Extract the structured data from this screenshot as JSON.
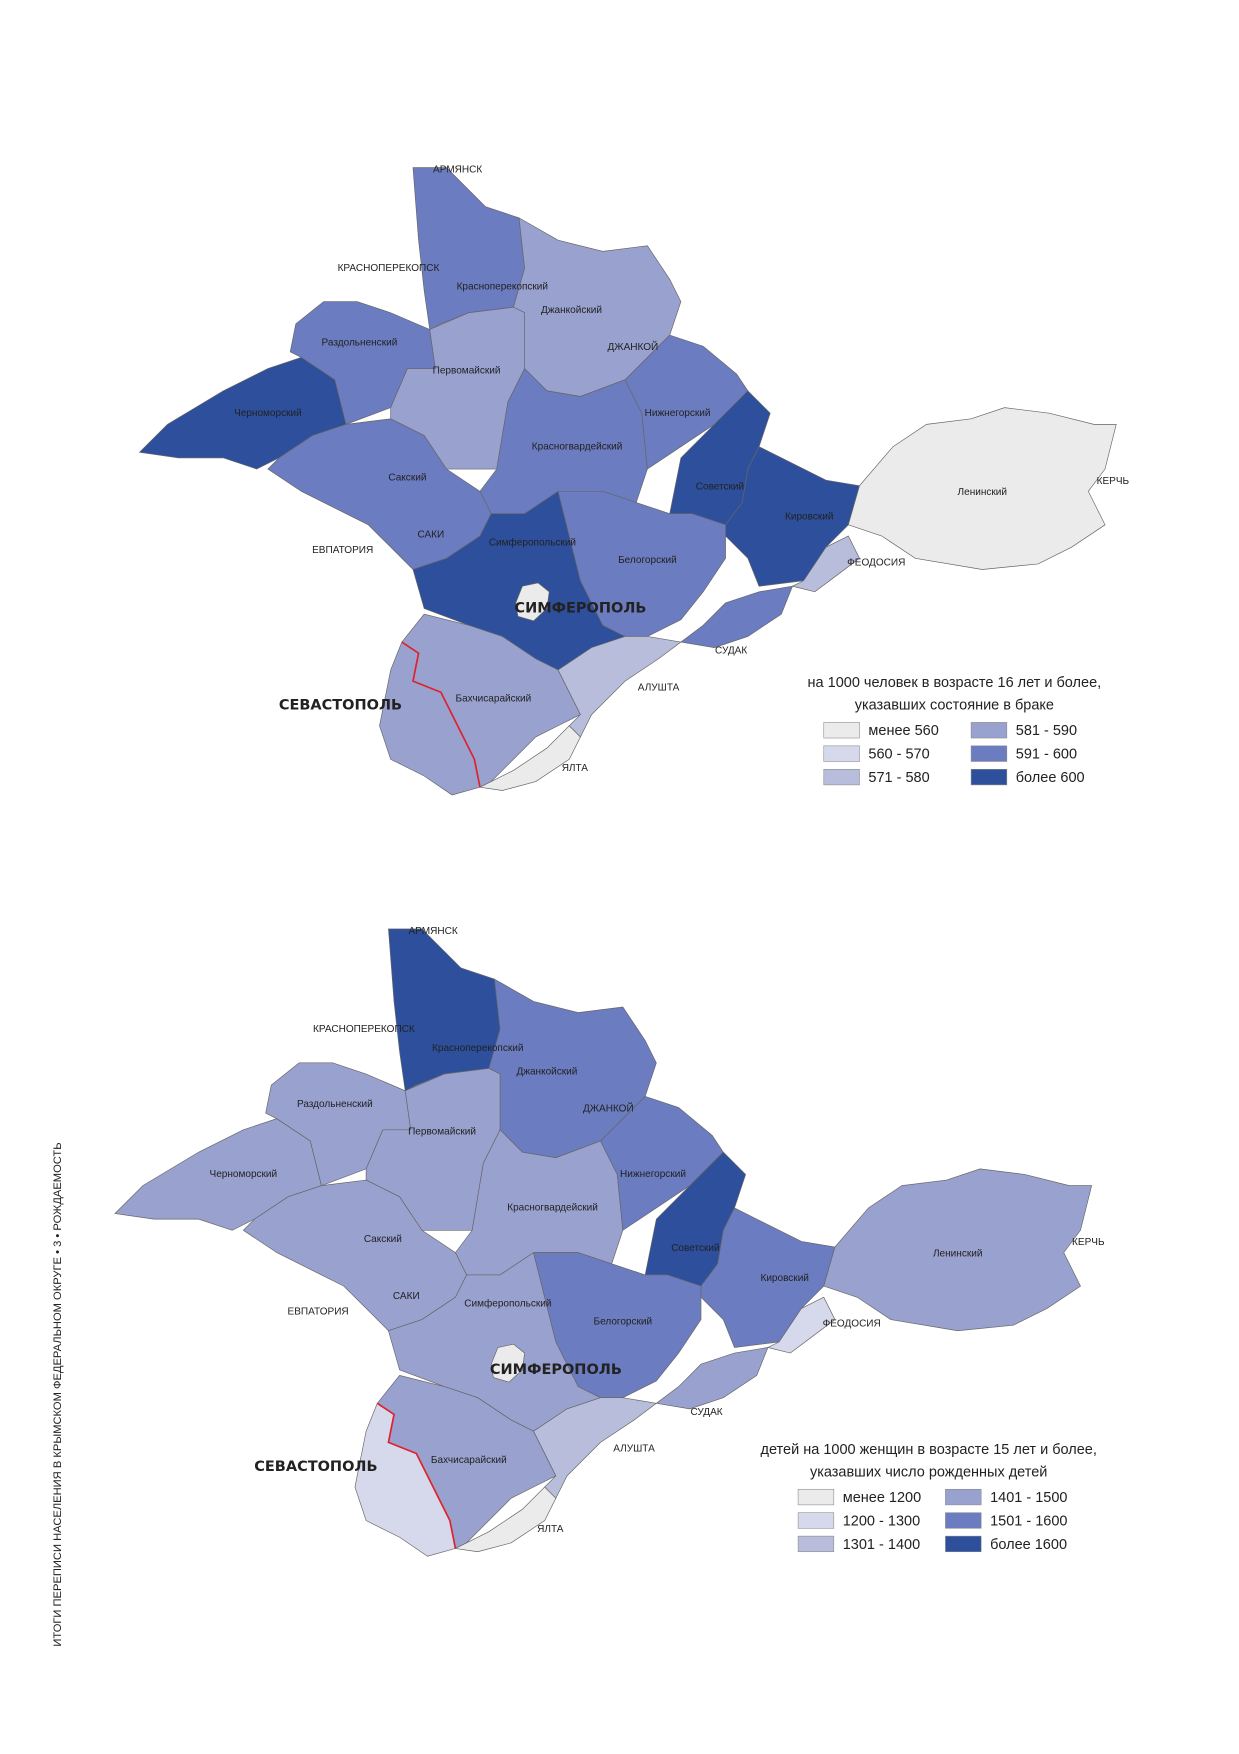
{
  "side_caption": "ИТОГИ ПЕРЕПИСИ НАСЕЛЕНИЯ В КРЫМСКОМ ФЕДЕРАЛЬНОМ ОКРУГЕ • 3 • РОЖДАЕМОСТЬ",
  "maps": [
    {
      "legend_title": [
        "на 1000 человек в возрасте 16 лет и более,",
        "указавших состояние в браке"
      ],
      "legend": [
        {
          "label": "менее 560",
          "color": "#ebebeb"
        },
        {
          "label": "560 - 570",
          "color": "#d6d9eb"
        },
        {
          "label": "571 - 580",
          "color": "#b8bddc"
        },
        {
          "label": "581 - 590",
          "color": "#99a1cf"
        },
        {
          "label": "591 - 600",
          "color": "#6b7cc0"
        },
        {
          "label": "более 600",
          "color": "#2d4f9c"
        }
      ],
      "regions": [
        {
          "name": "Черноморский",
          "class": 5
        },
        {
          "name": "Раздольненский",
          "class": 4
        },
        {
          "name": "Красноперекопский",
          "class": 4
        },
        {
          "name": "Джанкойский",
          "class": 3
        },
        {
          "name": "Первомайский",
          "class": 3
        },
        {
          "name": "Красногвардейский",
          "class": 4
        },
        {
          "name": "Нижнегорский",
          "class": 4
        },
        {
          "name": "Советский",
          "class": 5
        },
        {
          "name": "Кировский",
          "class": 5
        },
        {
          "name": "Ленинский",
          "class": 0
        },
        {
          "name": "Сакский",
          "class": 4
        },
        {
          "name": "Симферопольский",
          "class": 5
        },
        {
          "name": "Белогорский",
          "class": 4
        },
        {
          "name": "Бахчисарайский",
          "class": 3
        },
        {
          "name": "СЕВАСТОПОЛЬ",
          "class": 3
        },
        {
          "name": "ЯЛТА",
          "class": 0
        },
        {
          "name": "АЛУШТА",
          "class": 2
        },
        {
          "name": "СУДАК",
          "class": 4
        },
        {
          "name": "ФЕОДОСИЯ",
          "class": 2
        },
        {
          "name": "СИМФЕРОПОЛЬ",
          "class": 0
        }
      ],
      "places": [
        "АРМЯНСК",
        "КРАСНОПЕРЕКОПСК",
        "ЕВПАТОРИЯ",
        "САКИ",
        "ДЖАНКОЙ",
        "КЕРЧЬ"
      ]
    },
    {
      "legend_title": [
        "детей на 1000 женщин в возрасте 15 лет и более,",
        "указавших число рожденных детей"
      ],
      "legend": [
        {
          "label": "менее 1200",
          "color": "#ebebeb"
        },
        {
          "label": "1200 - 1300",
          "color": "#d6d9eb"
        },
        {
          "label": "1301 - 1400",
          "color": "#b8bddc"
        },
        {
          "label": "1401 - 1500",
          "color": "#99a1cf"
        },
        {
          "label": "1501 - 1600",
          "color": "#6b7cc0"
        },
        {
          "label": "более 1600",
          "color": "#2d4f9c"
        }
      ],
      "regions": [
        {
          "name": "Черноморский",
          "class": 3
        },
        {
          "name": "Раздольненский",
          "class": 3
        },
        {
          "name": "Красноперекопский",
          "class": 5
        },
        {
          "name": "Джанкойский",
          "class": 4
        },
        {
          "name": "Первомайский",
          "class": 3
        },
        {
          "name": "Красногвардейский",
          "class": 3
        },
        {
          "name": "Нижнегорский",
          "class": 4
        },
        {
          "name": "Советский",
          "class": 5
        },
        {
          "name": "Кировский",
          "class": 4
        },
        {
          "name": "Ленинский",
          "class": 3
        },
        {
          "name": "Сакский",
          "class": 3
        },
        {
          "name": "Симферопольский",
          "class": 3
        },
        {
          "name": "Белогорский",
          "class": 4
        },
        {
          "name": "Бахчисарайский",
          "class": 3
        },
        {
          "name": "СЕВАСТОПОЛЬ",
          "class": 1
        },
        {
          "name": "ЯЛТА",
          "class": 0
        },
        {
          "name": "АЛУШТА",
          "class": 2
        },
        {
          "name": "СУДАК",
          "class": 3
        },
        {
          "name": "ФЕОДОСИЯ",
          "class": 1
        },
        {
          "name": "СИМФЕРОПОЛЬ",
          "class": 0
        }
      ],
      "places": [
        "АРМЯНСК",
        "КРАСНОПЕРЕКОПСК",
        "ЕВПАТОРИЯ",
        "САКИ",
        "ДЖАНКОЙ",
        "КЕРЧЬ"
      ]
    }
  ]
}
